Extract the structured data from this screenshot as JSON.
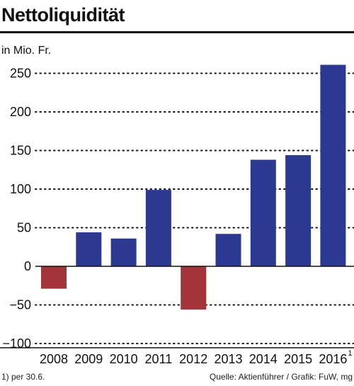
{
  "header": {
    "title": "Nettoliquidität",
    "unit": "in Mio. Fr."
  },
  "footer": {
    "footnote": "1) per 30.6.",
    "source": "Quelle: Aktienführer / Grafik: FuW, mg"
  },
  "colors": {
    "positive": "#2b3990",
    "negative": "#a3343a"
  },
  "chart_data": {
    "type": "bar",
    "categories": [
      "2008",
      "2009",
      "2010",
      "2011",
      "2012",
      "2013",
      "2014",
      "2015",
      "2016"
    ],
    "category_footnote_marks": [
      "",
      "",
      "",
      "",
      "",
      "",
      "",
      "",
      "1"
    ],
    "values": [
      -29,
      44,
      36,
      99,
      -56,
      42,
      138,
      144,
      261
    ],
    "ylim": [
      -100,
      265
    ],
    "yticks": [
      -100,
      -50,
      0,
      50,
      100,
      150,
      200,
      250
    ],
    "title": "Nettoliquidität",
    "ylabel": "in Mio. Fr.",
    "grid": "dotted-horizontal"
  }
}
